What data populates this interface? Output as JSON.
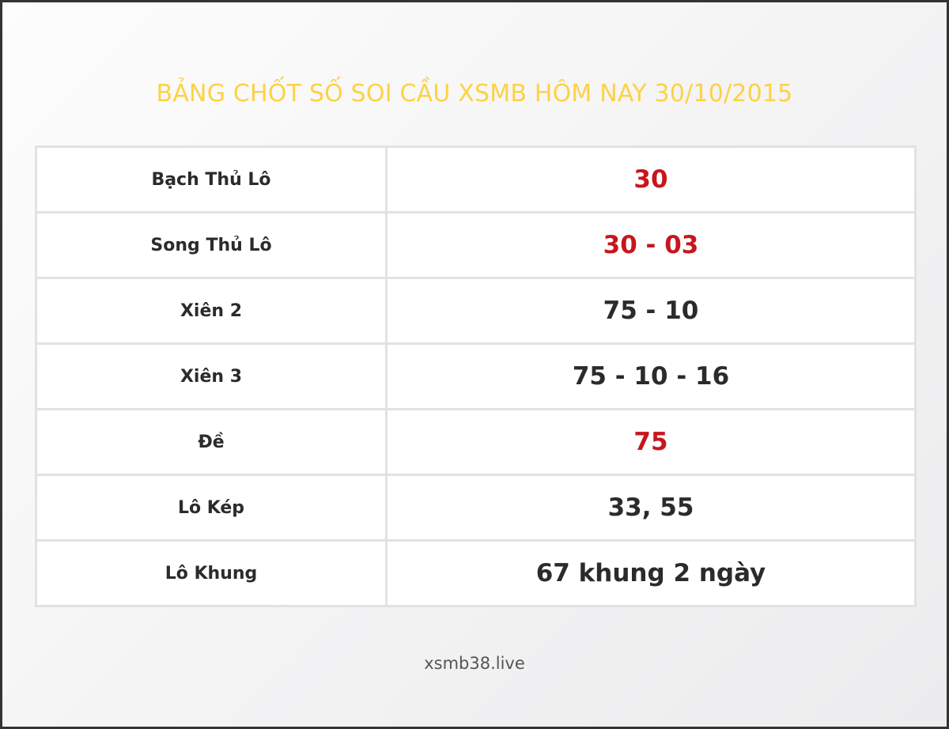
{
  "title": "BẢNG CHỐT SỐ SOI CẦU XSMB HÔM NAY 30/10/2015",
  "colors": {
    "title": "#fdd243",
    "highlight": "#c8161d",
    "text": "#2b2b2b"
  },
  "rows": [
    {
      "label": "Bạch Thủ Lô",
      "value": "30",
      "highlight": true
    },
    {
      "label": "Song Thủ Lô",
      "value": "30 - 03",
      "highlight": true
    },
    {
      "label": "Xiên 2",
      "value": "75 - 10",
      "highlight": false
    },
    {
      "label": "Xiên 3",
      "value": "75 - 10 - 16",
      "highlight": false
    },
    {
      "label": "Đề",
      "value": "75",
      "highlight": true
    },
    {
      "label": "Lô Kép",
      "value": "33, 55",
      "highlight": false
    },
    {
      "label": "Lô Khung",
      "value": "67 khung 2 ngày",
      "highlight": false
    }
  ],
  "footer": "xsmb38.live"
}
